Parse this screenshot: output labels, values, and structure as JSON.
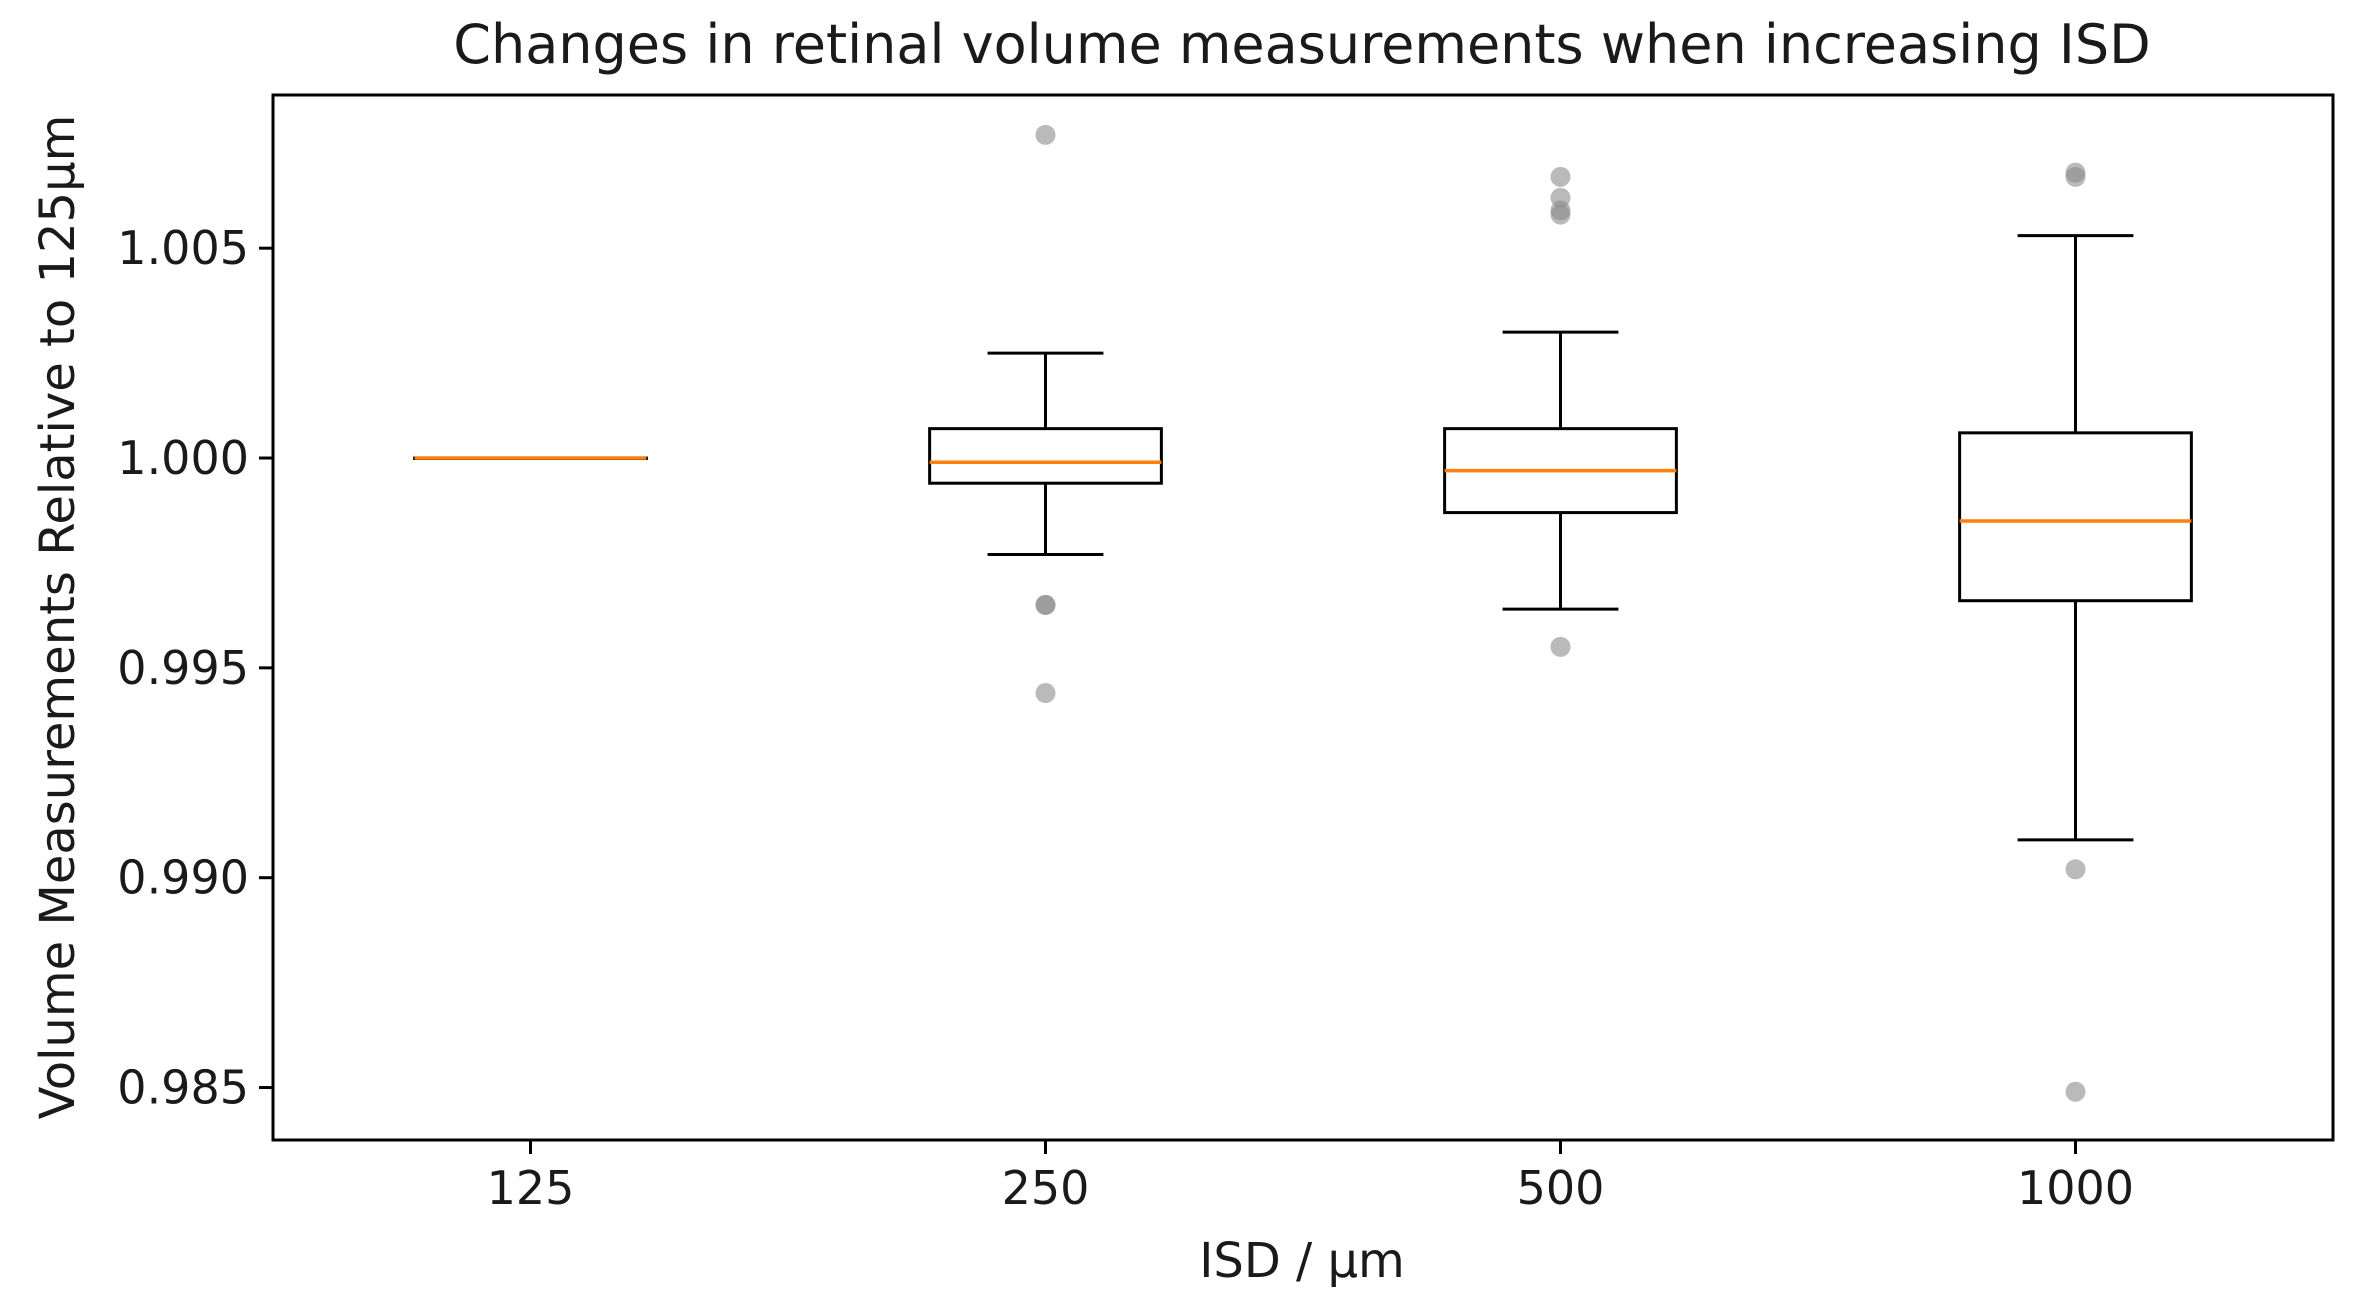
{
  "chart_data": {
    "type": "box",
    "title": "Changes in retinal volume measurements when increasing ISD",
    "xlabel": "ISD / µm",
    "ylabel": "Volume Measurements Relative to 125µm",
    "categories": [
      "125",
      "250",
      "500",
      "1000"
    ],
    "ylim": [
      0.98375,
      1.00865
    ],
    "yticks": [
      0.985,
      0.99,
      0.995,
      1.0,
      1.005
    ],
    "ytick_labels": [
      "0.985",
      "0.990",
      "0.995",
      "1.000",
      "1.005"
    ],
    "grid": false,
    "boxes": [
      {
        "name": "125",
        "whisker_low": 1.0,
        "q1": 1.0,
        "median": 1.0,
        "q3": 1.0,
        "whisker_high": 1.0,
        "outliers": []
      },
      {
        "name": "250",
        "whisker_low": 0.9977,
        "q1": 0.9994,
        "median": 0.9999,
        "q3": 1.0007,
        "whisker_high": 1.0025,
        "outliers": [
          0.9965,
          0.9965,
          0.9944,
          1.0077
        ]
      },
      {
        "name": "500",
        "whisker_low": 0.9964,
        "q1": 0.9987,
        "median": 0.9997,
        "q3": 1.0007,
        "whisker_high": 1.003,
        "outliers": [
          0.9955,
          1.0058,
          1.0059,
          1.0062,
          1.0067
        ]
      },
      {
        "name": "1000",
        "whisker_low": 0.9909,
        "q1": 0.9966,
        "median": 0.9985,
        "q3": 1.0006,
        "whisker_high": 1.0053,
        "outliers": [
          0.9902,
          0.9849,
          1.0067,
          1.0068
        ]
      }
    ],
    "colors": {
      "box": "#000000",
      "median": "#ff7f0e",
      "outlier": "#8c8c8c"
    }
  }
}
